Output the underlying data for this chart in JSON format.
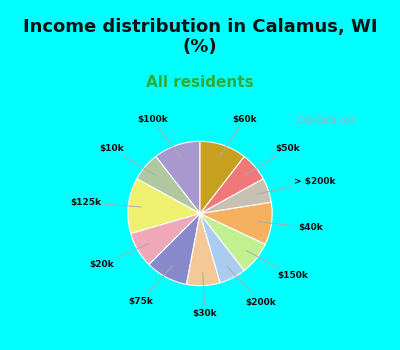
{
  "title": "Income distribution in Calamus, WI\n(%)",
  "subtitle": "All residents",
  "labels": [
    "$100k",
    "$10k",
    "$125k",
    "$20k",
    "$75k",
    "$30k",
    "$200k",
    "$150k",
    "$40k",
    "> $200k",
    "$50k",
    "$60k"
  ],
  "values": [
    10.5,
    6.5,
    12.5,
    8.0,
    9.5,
    7.5,
    6.0,
    7.5,
    9.5,
    5.5,
    6.5,
    10.5
  ],
  "colors": [
    "#a898d0",
    "#b0c8a0",
    "#f0f070",
    "#f0a8b8",
    "#8888cc",
    "#f5c898",
    "#aaccf0",
    "#c0f090",
    "#f5b060",
    "#c8c0b0",
    "#f07878",
    "#c8a020"
  ],
  "title_fontsize": 13,
  "subtitle_fontsize": 11,
  "title_color": "#111111",
  "subtitle_color": "#33aa33",
  "bg_color_top": "#00ffff",
  "bg_color_chart_lt": "#e0f5e8",
  "watermark": "  City-Data.com"
}
